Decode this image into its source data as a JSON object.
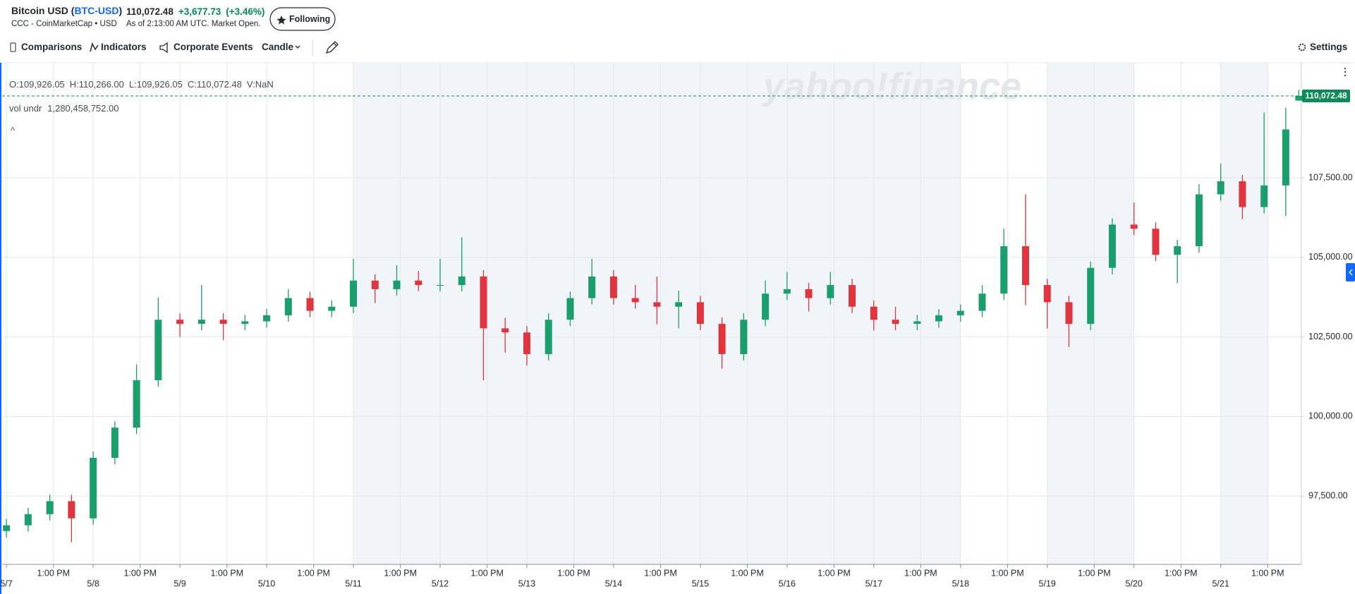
{
  "header": {
    "title": "Bitcoin USD (",
    "ticker": "BTC-USD",
    "title_suffix": ")",
    "source": "CCC - CoinMarketCap • USD",
    "price": "110,072.48",
    "change": "+3,677.73",
    "change_percent": "(+3.46%)",
    "as_of": "As of 2:13:00 AM UTC. Market Open.",
    "follow_button": "Following"
  },
  "toolbar": {
    "comparisons": "Comparisons",
    "indicators": "Indicators",
    "corporate_events": "Corporate Events",
    "chart_type": "Candle",
    "settings": "Settings"
  },
  "chart_data": {
    "type": "candlestick",
    "watermark": "yahoo!finance",
    "legend_lines": [
      "O:109,926.05",
      "H:110,266.00",
      "L:109,926.05",
      "C:110,072.48",
      "V:NaN"
    ],
    "volume_label": "vol undr",
    "volume_value": "1,280,458,752.00",
    "collapse": "^",
    "up_color": "#1a9e6c",
    "down_color": "#e0343e",
    "grid": true,
    "last_price": 110072.48,
    "last_price_label": "110,072.48",
    "last_price_color": "#0e8a5a",
    "shaded_ranges": [
      [
        4,
        11
      ],
      [
        12,
        13
      ],
      [
        14,
        14.54
      ]
    ],
    "xlim": [
      -0.05,
      14.93
    ],
    "ylim": [
      95353,
      111114
    ],
    "yticks": [
      {
        "value": 97500,
        "label": "97,500.00"
      },
      {
        "value": 100000,
        "label": "100,000.00"
      },
      {
        "value": 102500,
        "label": "102,500.00"
      },
      {
        "value": 105000,
        "label": "105,000.00"
      },
      {
        "value": 107500,
        "label": "107,500.00"
      }
    ],
    "xticks": [
      {
        "value": 0,
        "label": "5/7"
      },
      {
        "value": 0.542,
        "label": "1:00 PM"
      },
      {
        "value": 1,
        "label": "5/8"
      },
      {
        "value": 1.542,
        "label": "1:00 PM"
      },
      {
        "value": 2,
        "label": "5/9"
      },
      {
        "value": 2.542,
        "label": "1:00 PM"
      },
      {
        "value": 3,
        "label": "5/10"
      },
      {
        "value": 3.542,
        "label": "1:00 PM"
      },
      {
        "value": 4,
        "label": "5/11"
      },
      {
        "value": 4.542,
        "label": "1:00 PM"
      },
      {
        "value": 5,
        "label": "5/12"
      },
      {
        "value": 5.542,
        "label": "1:00 PM"
      },
      {
        "value": 6,
        "label": "5/13"
      },
      {
        "value": 6.542,
        "label": "1:00 PM"
      },
      {
        "value": 7,
        "label": "5/14"
      },
      {
        "value": 7.542,
        "label": "1:00 PM"
      },
      {
        "value": 8,
        "label": "5/15"
      },
      {
        "value": 8.542,
        "label": "1:00 PM"
      },
      {
        "value": 9,
        "label": "5/16"
      },
      {
        "value": 9.542,
        "label": "1:00 PM"
      },
      {
        "value": 10,
        "label": "5/17"
      },
      {
        "value": 10.542,
        "label": "1:00 PM"
      },
      {
        "value": 11,
        "label": "5/18"
      },
      {
        "value": 11.542,
        "label": "1:00 PM"
      },
      {
        "value": 12,
        "label": "5/19"
      },
      {
        "value": 12.542,
        "label": "1:00 PM"
      },
      {
        "value": 13,
        "label": "5/20"
      },
      {
        "value": 13.542,
        "label": "1:00 PM"
      },
      {
        "value": 14,
        "label": "5/21"
      },
      {
        "value": 14.542,
        "label": "1:00 PM"
      }
    ],
    "x": [
      0,
      0.25,
      0.5,
      0.75,
      1,
      1.25,
      1.5,
      1.75,
      2,
      2.25,
      2.5,
      2.75,
      3,
      3.25,
      3.5,
      3.75,
      4,
      4.25,
      4.5,
      4.75,
      5,
      5.25,
      5.5,
      5.75,
      6,
      6.25,
      6.5,
      6.75,
      7,
      7.25,
      7.5,
      7.75,
      8,
      8.25,
      8.5,
      8.75,
      9,
      9.25,
      9.5,
      9.75,
      10,
      10.25,
      10.5,
      10.75,
      11,
      11.25,
      11.5,
      11.75,
      12,
      12.25,
      12.5,
      12.75,
      13,
      13.25,
      13.5,
      13.75,
      14,
      14.25,
      14.5,
      14.75,
      14.9
    ],
    "open": [
      96400,
      96580,
      96930,
      97340,
      96800,
      98700,
      99650,
      101140,
      103040,
      102910,
      103040,
      102910,
      102990,
      103180,
      103720,
      103320,
      103450,
      104270,
      104000,
      104270,
      104130,
      104130,
      104400,
      102770,
      102640,
      101960,
      103040,
      103720,
      104400,
      103720,
      103590,
      103450,
      103590,
      102910,
      101960,
      103040,
      103860,
      104000,
      103720,
      104130,
      103450,
      103040,
      102910,
      102990,
      103180,
      103320,
      103860,
      105350,
      104130,
      103590,
      102910,
      104670,
      106030,
      105900,
      105080,
      105350,
      106980,
      107390,
      106580,
      107260,
      109926.05
    ],
    "high": [
      96780,
      97130,
      97540,
      97540,
      98900,
      99850,
      101640,
      103740,
      103240,
      104130,
      103240,
      103190,
      103380,
      104000,
      103920,
      103650,
      104950,
      104470,
      104750,
      104570,
      104950,
      105630,
      104600,
      103100,
      102840,
      103240,
      103920,
      104950,
      104600,
      104130,
      104400,
      103950,
      103790,
      103110,
      103240,
      104270,
      104540,
      104200,
      104540,
      104330,
      103650,
      103450,
      103190,
      103380,
      103520,
      104130,
      105900,
      106980,
      104330,
      103790,
      104870,
      106230,
      106720,
      106100,
      105550,
      107300,
      107950,
      107590,
      109550,
      109700,
      110266
    ],
    "low": [
      96200,
      96380,
      96730,
      96050,
      96600,
      98500,
      99450,
      100940,
      102500,
      102710,
      102400,
      102710,
      102790,
      102980,
      103120,
      103120,
      103250,
      103560,
      103800,
      103930,
      103930,
      103930,
      101140,
      102000,
      101600,
      101760,
      102840,
      103520,
      103520,
      103390,
      102900,
      102770,
      102710,
      101500,
      101760,
      102840,
      103660,
      103300,
      103520,
      103250,
      102700,
      102710,
      102710,
      102790,
      102980,
      103120,
      103660,
      103500,
      102770,
      102180,
      102710,
      104470,
      105700,
      104880,
      104190,
      105150,
      106780,
      106200,
      106380,
      106300,
      109926.05
    ],
    "close": [
      96580,
      96930,
      97340,
      96800,
      98700,
      99650,
      101140,
      103040,
      102910,
      103040,
      102910,
      102990,
      103180,
      103720,
      103320,
      103450,
      104270,
      104000,
      104270,
      104130,
      104130,
      104400,
      102770,
      102640,
      101960,
      103040,
      103720,
      104400,
      103720,
      103590,
      103450,
      103590,
      102910,
      101960,
      103040,
      103860,
      104000,
      103720,
      104130,
      103450,
      103040,
      102910,
      102990,
      103180,
      103320,
      103860,
      105350,
      104130,
      103590,
      102910,
      104670,
      106030,
      105900,
      105080,
      105350,
      106980,
      107390,
      106580,
      107260,
      109020,
      110072.48
    ]
  }
}
